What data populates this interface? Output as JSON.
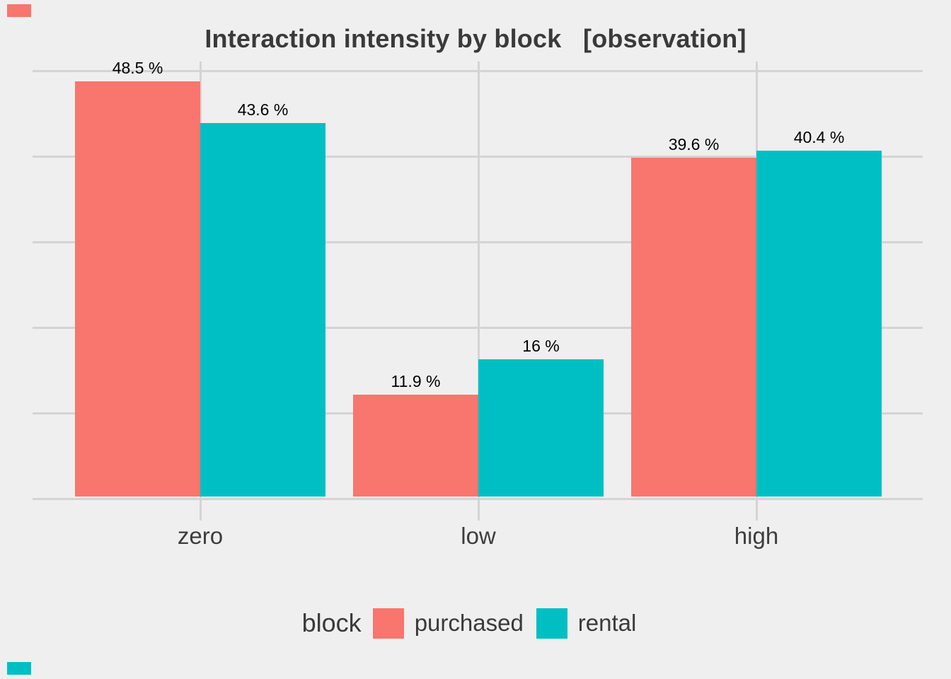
{
  "title": "Interaction intensity by block   [observation]",
  "colors": {
    "background": "#efefef",
    "gridline": "#d4d4d4",
    "purchased": "#f8766d",
    "rental": "#00bfc4",
    "title_text": "#3a3a3a",
    "axis_text": "#3d3d3d",
    "value_label_text": "#000000"
  },
  "legend": {
    "title": "block",
    "items": [
      {
        "label": "purchased",
        "color": "#f8766d"
      },
      {
        "label": "rental",
        "color": "#00bfc4"
      }
    ]
  },
  "chart_data": {
    "type": "bar",
    "title": "Interaction intensity by block   [observation]",
    "categories": [
      "zero",
      "low",
      "high"
    ],
    "series": [
      {
        "name": "purchased",
        "color": "#f8766d",
        "values": [
          48.5,
          11.9,
          39.6
        ],
        "labels": [
          "48.5 %",
          "11.9 %",
          "39.6 %"
        ]
      },
      {
        "name": "rental",
        "color": "#00bfc4",
        "values": [
          43.6,
          16,
          40.4
        ],
        "labels": [
          "43.6 %",
          "16 %",
          "40.4 %"
        ]
      }
    ],
    "xlabel": "",
    "ylabel": "",
    "unit": "%",
    "ylim": [
      0,
      50.9
    ],
    "y_gridlines": [
      0,
      10,
      20,
      30,
      40,
      50
    ],
    "grid": "major-only",
    "y_axis_labels_shown": false,
    "legend_position": "bottom"
  },
  "corner_markers": [
    {
      "position": "top-left",
      "color": "#f8766d"
    },
    {
      "position": "bottom-left",
      "color": "#00bfc4"
    }
  ]
}
